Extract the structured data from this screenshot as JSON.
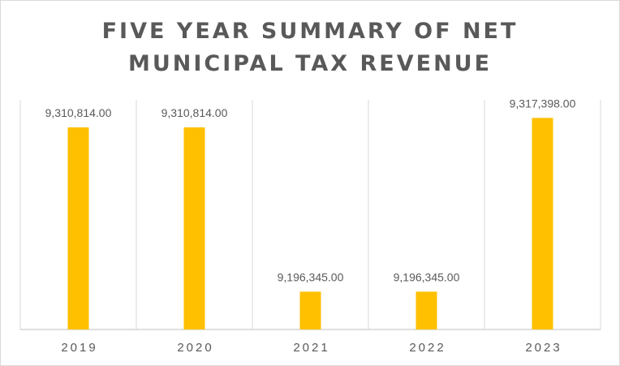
{
  "chart_data": {
    "type": "bar",
    "title_lines": [
      "FIVE YEAR SUMMARY OF NET",
      "MUNICIPAL TAX REVENUE"
    ],
    "categories": [
      "2019",
      "2020",
      "2021",
      "2022",
      "2023"
    ],
    "values": [
      9310814.0,
      9310814.0,
      9196345.0,
      9196345.0,
      9317398.0
    ],
    "data_labels": [
      "9,310,814.00",
      "9,310,814.00",
      "9,196,345.00",
      "9,196,345.00",
      "9,317,398.00"
    ],
    "xlabel": "",
    "ylabel": "",
    "ylim": [
      9170000,
      9330000
    ],
    "grid": "vertical",
    "legend": "none",
    "colors": {
      "bar": "#FFC000",
      "text": "#595959",
      "grid": "#d9d9d9",
      "axis": "#bfbfbf"
    }
  }
}
